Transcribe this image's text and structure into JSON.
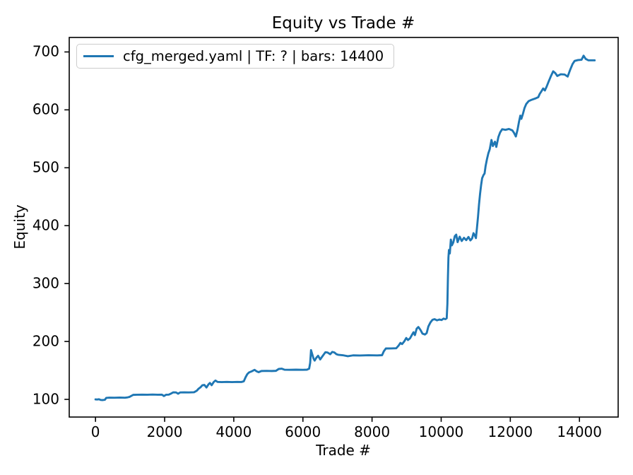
{
  "chart_data": {
    "type": "line",
    "title": "Equity vs Trade #",
    "xlabel": "Trade #",
    "ylabel": "Equity",
    "grid": false,
    "legend_position": "upper left",
    "line_color": "#1f77b4",
    "axis_color": "#000000",
    "legend_border_color": "#cccccc",
    "xlim": [
      -760,
      15120
    ],
    "ylim": [
      69.5,
      725
    ],
    "x_ticks": [
      0,
      2000,
      4000,
      6000,
      8000,
      10000,
      12000,
      14000
    ],
    "y_ticks": [
      100,
      200,
      300,
      400,
      500,
      600,
      700
    ],
    "series": [
      {
        "name": "cfg_merged.yaml | TF: ? | bars: 14400",
        "points": [
          [
            0,
            100
          ],
          [
            50,
            99.8
          ],
          [
            100,
            100.3
          ],
          [
            150,
            99.0
          ],
          [
            210,
            98.8
          ],
          [
            270,
            99.3
          ],
          [
            310,
            102.5
          ],
          [
            400,
            103.0
          ],
          [
            550,
            102.8
          ],
          [
            700,
            103.1
          ],
          [
            850,
            102.9
          ],
          [
            930,
            103.5
          ],
          [
            980,
            104.2
          ],
          [
            1030,
            105.8
          ],
          [
            1090,
            107.8
          ],
          [
            1200,
            108.0
          ],
          [
            1350,
            108.2
          ],
          [
            1500,
            108.0
          ],
          [
            1650,
            108.3
          ],
          [
            1800,
            108.0
          ],
          [
            1920,
            108.2
          ],
          [
            1980,
            105.8
          ],
          [
            2040,
            108.0
          ],
          [
            2120,
            108.2
          ],
          [
            2200,
            110.5
          ],
          [
            2250,
            112.2
          ],
          [
            2330,
            112.0
          ],
          [
            2390,
            109.8
          ],
          [
            2450,
            112.0
          ],
          [
            2570,
            112.2
          ],
          [
            2700,
            112.0
          ],
          [
            2850,
            112.3
          ],
          [
            2930,
            115.0
          ],
          [
            2980,
            118.3
          ],
          [
            3040,
            121.0
          ],
          [
            3090,
            124.4
          ],
          [
            3150,
            125.0
          ],
          [
            3210,
            120.5
          ],
          [
            3270,
            126.0
          ],
          [
            3310,
            128.4
          ],
          [
            3360,
            124.5
          ],
          [
            3420,
            130.0
          ],
          [
            3470,
            132.6
          ],
          [
            3530,
            130.2
          ],
          [
            3650,
            129.8
          ],
          [
            3800,
            130.2
          ],
          [
            3950,
            129.8
          ],
          [
            4100,
            130.1
          ],
          [
            4220,
            130.0
          ],
          [
            4290,
            131.2
          ],
          [
            4340,
            138.0
          ],
          [
            4390,
            143.5
          ],
          [
            4440,
            146.5
          ],
          [
            4520,
            148.5
          ],
          [
            4600,
            151.0
          ],
          [
            4660,
            148.5
          ],
          [
            4720,
            147.0
          ],
          [
            4800,
            149.0
          ],
          [
            4950,
            149.2
          ],
          [
            5100,
            149.0
          ],
          [
            5220,
            149.3
          ],
          [
            5300,
            152.5
          ],
          [
            5390,
            153.0
          ],
          [
            5470,
            151.2
          ],
          [
            5600,
            151.0
          ],
          [
            5800,
            151.3
          ],
          [
            6000,
            151.0
          ],
          [
            6120,
            151.3
          ],
          [
            6180,
            153.0
          ],
          [
            6210,
            163.0
          ],
          [
            6235,
            185.0
          ],
          [
            6270,
            178.0
          ],
          [
            6310,
            170.0
          ],
          [
            6340,
            167.0
          ],
          [
            6390,
            172.0
          ],
          [
            6440,
            175.3
          ],
          [
            6500,
            169.0
          ],
          [
            6560,
            174.0
          ],
          [
            6650,
            181.4
          ],
          [
            6710,
            181.0
          ],
          [
            6790,
            178.0
          ],
          [
            6850,
            182.0
          ],
          [
            6910,
            181.0
          ],
          [
            6970,
            178.0
          ],
          [
            7020,
            177.0
          ],
          [
            7150,
            176.3
          ],
          [
            7300,
            174.5
          ],
          [
            7450,
            176.0
          ],
          [
            7650,
            175.8
          ],
          [
            7900,
            176.2
          ],
          [
            8150,
            175.9
          ],
          [
            8290,
            176.3
          ],
          [
            8340,
            183.0
          ],
          [
            8400,
            187.9
          ],
          [
            8550,
            188.0
          ],
          [
            8700,
            188.3
          ],
          [
            8770,
            193.0
          ],
          [
            8820,
            197.5
          ],
          [
            8870,
            195.5
          ],
          [
            8930,
            200.0
          ],
          [
            8990,
            206.0
          ],
          [
            9040,
            202.5
          ],
          [
            9100,
            205.5
          ],
          [
            9160,
            212.0
          ],
          [
            9200,
            216.0
          ],
          [
            9240,
            211.0
          ],
          [
            9290,
            222.0
          ],
          [
            9340,
            225.0
          ],
          [
            9400,
            220.0
          ],
          [
            9460,
            213.5
          ],
          [
            9530,
            212.0
          ],
          [
            9580,
            214.5
          ],
          [
            9630,
            226.0
          ],
          [
            9690,
            233.0
          ],
          [
            9750,
            237.5
          ],
          [
            9810,
            238.5
          ],
          [
            9880,
            236.5
          ],
          [
            9950,
            238.0
          ],
          [
            10010,
            237.0
          ],
          [
            10070,
            239.5
          ],
          [
            10120,
            238.5
          ],
          [
            10160,
            240.0
          ],
          [
            10180,
            265.0
          ],
          [
            10195,
            310.0
          ],
          [
            10210,
            345.0
          ],
          [
            10225,
            358.0
          ],
          [
            10250,
            352.0
          ],
          [
            10280,
            376.0
          ],
          [
            10310,
            366.0
          ],
          [
            10350,
            371.0
          ],
          [
            10395,
            382.0
          ],
          [
            10435,
            384.5
          ],
          [
            10475,
            371.5
          ],
          [
            10535,
            381.0
          ],
          [
            10595,
            373.5
          ],
          [
            10660,
            379.0
          ],
          [
            10725,
            375.0
          ],
          [
            10790,
            380.5
          ],
          [
            10845,
            374.5
          ],
          [
            10895,
            378.0
          ],
          [
            10935,
            387.0
          ],
          [
            10975,
            383.0
          ],
          [
            11005,
            378.5
          ],
          [
            11035,
            396.0
          ],
          [
            11065,
            415.0
          ],
          [
            11095,
            437.0
          ],
          [
            11125,
            455.0
          ],
          [
            11155,
            470.0
          ],
          [
            11185,
            482.0
          ],
          [
            11225,
            487.5
          ],
          [
            11255,
            490.0
          ],
          [
            11285,
            503.0
          ],
          [
            11325,
            515.0
          ],
          [
            11365,
            525.0
          ],
          [
            11405,
            532.0
          ],
          [
            11455,
            548.0
          ],
          [
            11495,
            537.5
          ],
          [
            11555,
            545.0
          ],
          [
            11595,
            536.0
          ],
          [
            11655,
            553.0
          ],
          [
            11705,
            561.0
          ],
          [
            11765,
            566.5
          ],
          [
            11860,
            565.5
          ],
          [
            11960,
            567.0
          ],
          [
            12060,
            564.5
          ],
          [
            12110,
            560.0
          ],
          [
            12160,
            554.0
          ],
          [
            12210,
            566.0
          ],
          [
            12250,
            579.0
          ],
          [
            12290,
            590.0
          ],
          [
            12320,
            584.5
          ],
          [
            12360,
            592.0
          ],
          [
            12410,
            603.0
          ],
          [
            12460,
            610.0
          ],
          [
            12530,
            615.0
          ],
          [
            12620,
            617.5
          ],
          [
            12720,
            619.5
          ],
          [
            12810,
            622.0
          ],
          [
            12850,
            627.5
          ],
          [
            12900,
            632.0
          ],
          [
            12950,
            637.0
          ],
          [
            13000,
            633.5
          ],
          [
            13050,
            640.0
          ],
          [
            13110,
            649.0
          ],
          [
            13180,
            659.0
          ],
          [
            13240,
            666.5
          ],
          [
            13300,
            663.5
          ],
          [
            13360,
            658.5
          ],
          [
            13460,
            661.5
          ],
          [
            13570,
            661.0
          ],
          [
            13660,
            657.5
          ],
          [
            13730,
            669.0
          ],
          [
            13800,
            679.0
          ],
          [
            13860,
            684.5
          ],
          [
            13960,
            686.0
          ],
          [
            14060,
            686.5
          ],
          [
            14120,
            693.5
          ],
          [
            14180,
            688.0
          ],
          [
            14260,
            685.5
          ],
          [
            14440,
            685.5
          ]
        ]
      }
    ]
  }
}
